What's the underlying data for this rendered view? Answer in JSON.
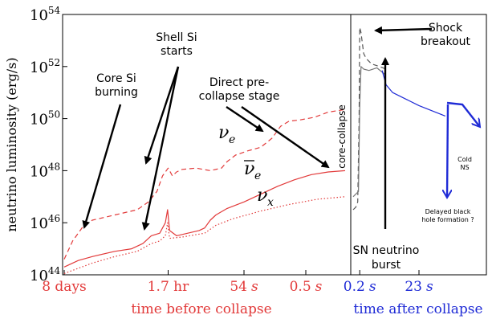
{
  "chart_data": {
    "type": "line",
    "title": "",
    "ylabel": "neutrino luminosity (erg/s)",
    "y_scale": "log",
    "ylim_log10": [
      44,
      54
    ],
    "y_ticks": [
      {
        "exp": 44,
        "base": "10",
        "sup": "44"
      },
      {
        "exp": 46,
        "base": "10",
        "sup": "46"
      },
      {
        "exp": 48,
        "base": "10",
        "sup": "48"
      },
      {
        "exp": 50,
        "base": "10",
        "sup": "50"
      },
      {
        "exp": 52,
        "base": "10",
        "sup": "52"
      },
      {
        "exp": 54,
        "base": "10",
        "sup": "54"
      }
    ],
    "panels": [
      {
        "id": "before",
        "xlabel": "time before collapse",
        "color": "#e23a3a",
        "x_ticks": [
          {
            "pos": 0.0,
            "num": "8 days",
            "unit": ""
          },
          {
            "pos": 0.37,
            "num": "1.7 hr",
            "unit": ""
          },
          {
            "pos": 0.64,
            "num": "54",
            "unit": "s"
          },
          {
            "pos": 0.86,
            "num": "0.5",
            "unit": "s"
          }
        ],
        "xlim": [
          0,
          1
        ]
      },
      {
        "id": "after",
        "xlabel": "time after collapse",
        "color": "#1f2bd6",
        "x_ticks": [
          {
            "pos": 0.05,
            "num": "0.2",
            "unit": "s"
          },
          {
            "pos": 0.5,
            "num": "23",
            "unit": "s"
          }
        ],
        "xlim": [
          0,
          1
        ]
      }
    ],
    "series": [
      {
        "name": "νe",
        "panel": "before",
        "style": "dashed",
        "color": "#e23a3a",
        "points": [
          [
            0.0,
            44.6
          ],
          [
            0.03,
            45.3
          ],
          [
            0.07,
            45.9
          ],
          [
            0.1,
            46.1
          ],
          [
            0.18,
            46.3
          ],
          [
            0.26,
            46.5
          ],
          [
            0.3,
            46.8
          ],
          [
            0.33,
            47.2
          ],
          [
            0.35,
            47.8
          ],
          [
            0.37,
            48.1
          ],
          [
            0.385,
            47.8
          ],
          [
            0.4,
            47.95
          ],
          [
            0.42,
            48.05
          ],
          [
            0.47,
            48.1
          ],
          [
            0.52,
            48.0
          ],
          [
            0.56,
            48.1
          ],
          [
            0.58,
            48.35
          ],
          [
            0.61,
            48.6
          ],
          [
            0.65,
            48.75
          ],
          [
            0.7,
            48.9
          ],
          [
            0.74,
            49.25
          ],
          [
            0.77,
            49.7
          ],
          [
            0.8,
            49.9
          ],
          [
            0.84,
            49.95
          ],
          [
            0.89,
            50.05
          ],
          [
            0.94,
            50.25
          ],
          [
            1.0,
            50.35
          ]
        ]
      },
      {
        "name": "ν̄e",
        "panel": "before",
        "style": "solid",
        "color": "#e23a3a",
        "points": [
          [
            0.0,
            44.3
          ],
          [
            0.05,
            44.55
          ],
          [
            0.1,
            44.7
          ],
          [
            0.18,
            44.9
          ],
          [
            0.24,
            45.0
          ],
          [
            0.28,
            45.2
          ],
          [
            0.31,
            45.5
          ],
          [
            0.34,
            45.6
          ],
          [
            0.36,
            46.0
          ],
          [
            0.368,
            46.5
          ],
          [
            0.375,
            45.7
          ],
          [
            0.4,
            45.5
          ],
          [
            0.44,
            45.6
          ],
          [
            0.48,
            45.7
          ],
          [
            0.5,
            45.8
          ],
          [
            0.52,
            46.1
          ],
          [
            0.54,
            46.3
          ],
          [
            0.58,
            46.55
          ],
          [
            0.64,
            46.8
          ],
          [
            0.7,
            47.1
          ],
          [
            0.76,
            47.4
          ],
          [
            0.82,
            47.65
          ],
          [
            0.88,
            47.85
          ],
          [
            0.94,
            47.95
          ],
          [
            1.0,
            48.0
          ]
        ]
      },
      {
        "name": "νx",
        "panel": "before",
        "style": "dotted",
        "color": "#e23a3a",
        "points": [
          [
            0.0,
            44.05
          ],
          [
            0.05,
            44.25
          ],
          [
            0.1,
            44.45
          ],
          [
            0.18,
            44.7
          ],
          [
            0.26,
            44.9
          ],
          [
            0.31,
            45.2
          ],
          [
            0.34,
            45.3
          ],
          [
            0.36,
            45.5
          ],
          [
            0.368,
            46.0
          ],
          [
            0.375,
            45.4
          ],
          [
            0.42,
            45.45
          ],
          [
            0.5,
            45.6
          ],
          [
            0.54,
            45.9
          ],
          [
            0.6,
            46.15
          ],
          [
            0.7,
            46.45
          ],
          [
            0.8,
            46.7
          ],
          [
            0.9,
            46.9
          ],
          [
            1.0,
            47.0
          ]
        ]
      },
      {
        "name": "post-bounce (dashed)",
        "panel": "after",
        "style": "dashed",
        "color": "#555555",
        "points": [
          [
            0.0,
            46.5
          ],
          [
            0.02,
            46.6
          ],
          [
            0.035,
            46.8
          ],
          [
            0.045,
            50.0
          ],
          [
            0.05,
            53.5
          ],
          [
            0.06,
            53.3
          ],
          [
            0.08,
            52.5
          ],
          [
            0.1,
            52.3
          ],
          [
            0.14,
            52.1
          ],
          [
            0.2,
            52.0
          ],
          [
            0.25,
            51.9
          ]
        ]
      },
      {
        "name": "post-bounce (solid)",
        "panel": "after",
        "style": "solid",
        "color": "#777777",
        "points": [
          [
            0.0,
            47.0
          ],
          [
            0.02,
            47.1
          ],
          [
            0.04,
            47.2
          ],
          [
            0.05,
            50.5
          ],
          [
            0.06,
            52.0
          ],
          [
            0.08,
            51.9
          ],
          [
            0.12,
            51.85
          ],
          [
            0.18,
            51.95
          ],
          [
            0.24,
            51.7
          ]
        ]
      },
      {
        "name": "post-bounce (blue)",
        "panel": "after",
        "style": "solid",
        "color": "#1f2bd6",
        "points": [
          [
            0.22,
            51.85
          ],
          [
            0.25,
            51.3
          ],
          [
            0.3,
            51.0
          ],
          [
            0.4,
            50.75
          ],
          [
            0.5,
            50.5
          ],
          [
            0.6,
            50.3
          ],
          [
            0.7,
            50.1
          ]
        ]
      }
    ],
    "divider": {
      "panel": "before_end",
      "label": "core-collapse"
    },
    "annotations": [
      {
        "text": "Core Si\nburning"
      },
      {
        "text": "Shell Si\nstarts"
      },
      {
        "text": "Direct pre-\ncollapse stage"
      },
      {
        "text": "Shock\nbreakout"
      },
      {
        "text": "SN neutrino\nburst"
      },
      {
        "text": "Cold\nNS"
      },
      {
        "text": "Delayed black\nhole formation ?"
      }
    ],
    "series_labels": [
      {
        "base": "ν",
        "sub": "e",
        "bar": false
      },
      {
        "base": "ν",
        "sub": "e",
        "bar": true
      },
      {
        "base": "ν",
        "sub": "x",
        "bar": false
      }
    ]
  }
}
